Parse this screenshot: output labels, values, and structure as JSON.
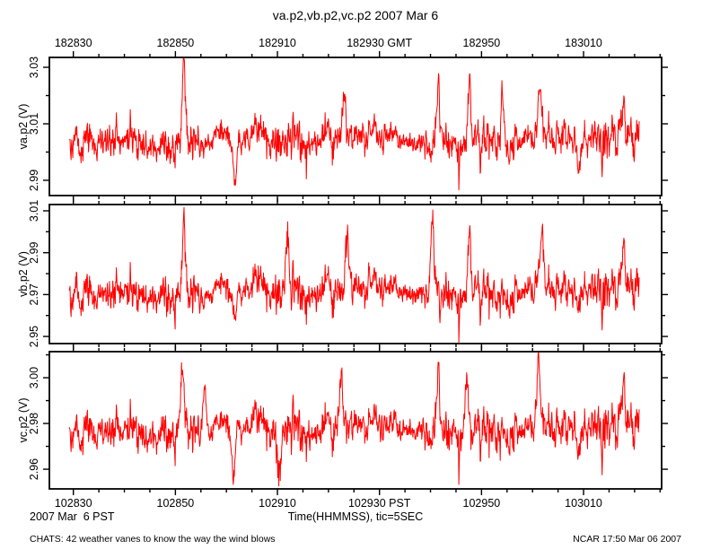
{
  "footer": {
    "left": "CHATS: 42 weather vanes to know the way the wind blows",
    "right": "NCAR 17:50 Mar 06 2007"
  },
  "chart_data": {
    "type": "line",
    "title": "va.p2,vb.p2,vc.p2 2007 Mar 6",
    "xlabel": "Time(HHMMSS), tic=5SEC",
    "date_label": "2007 Mar  6 PST",
    "line_color": "#ff0000",
    "grid": "off",
    "x_range_s": 120,
    "x_minor_step_s": 5,
    "data_start_s": 3.9,
    "data_end_s": 115.6,
    "seed": 20070306,
    "top_axis": {
      "timezone": "GMT",
      "ticks": [
        {
          "s": 4.7,
          "label": "182830"
        },
        {
          "s": 24.7,
          "label": "182850"
        },
        {
          "s": 44.7,
          "label": "182910"
        },
        {
          "s": 64.7,
          "label": "182930 GMT"
        },
        {
          "s": 84.7,
          "label": "182950"
        },
        {
          "s": 104.7,
          "label": "183010"
        }
      ]
    },
    "bottom_axis": {
      "timezone": "PST",
      "ticks": [
        {
          "s": 4.7,
          "label": "102830"
        },
        {
          "s": 24.7,
          "label": "102850"
        },
        {
          "s": 44.7,
          "label": "102910"
        },
        {
          "s": 64.7,
          "label": "102930 PST"
        },
        {
          "s": 84.7,
          "label": "102950"
        },
        {
          "s": 104.7,
          "label": "103010"
        }
      ]
    },
    "panels": [
      {
        "name": "va.p2",
        "ylabel": "va.p2 (V)",
        "ylim": [
          2.9846,
          3.0335
        ],
        "yticks_major": [
          2.99,
          3.01,
          3.03
        ],
        "yticks_minor": [
          3.0,
          3.02
        ],
        "mean": 3.004,
        "noise_sd": 0.0032,
        "spikes": [
          {
            "t": 26.3,
            "v": 3.0322
          },
          {
            "t": 36.4,
            "v": 2.9868
          },
          {
            "t": 57.7,
            "v": 3.0205
          },
          {
            "t": 76.3,
            "v": 3.0225
          },
          {
            "t": 82.3,
            "v": 3.0262
          },
          {
            "t": 88.8,
            "v": 3.0195
          },
          {
            "t": 96.2,
            "v": 3.0215
          },
          {
            "t": 103.8,
            "v": 2.9892
          },
          {
            "t": 112.6,
            "v": 3.0192
          }
        ]
      },
      {
        "name": "vb.p2",
        "ylabel": "vb.p2 (V)",
        "ylim": [
          2.9466,
          3.013
        ],
        "yticks_major": [
          2.95,
          2.97,
          2.99,
          3.01
        ],
        "yticks_minor": [
          2.96,
          2.98,
          3.0
        ],
        "mean": 2.971,
        "noise_sd": 0.0044,
        "spikes": [
          {
            "t": 26.3,
            "v": 3.004
          },
          {
            "t": 36.4,
            "v": 2.9558
          },
          {
            "t": 46.6,
            "v": 2.999
          },
          {
            "t": 58.4,
            "v": 2.9978
          },
          {
            "t": 75.0,
            "v": 3.0092
          },
          {
            "t": 82.3,
            "v": 3.0
          },
          {
            "t": 96.5,
            "v": 2.9992
          },
          {
            "t": 103.8,
            "v": 2.9578
          },
          {
            "t": 112.6,
            "v": 2.9968
          }
        ]
      },
      {
        "name": "vc.p2",
        "ylabel": "vc.p2 (V)",
        "ylim": [
          2.9514,
          3.0114
        ],
        "yticks_major": [
          2.96,
          2.98,
          3.0
        ],
        "yticks_minor": [
          2.97,
          2.99,
          3.01
        ],
        "mean": 2.977,
        "noise_sd": 0.0042,
        "spikes": [
          {
            "t": 26.0,
            "v": 3.0075
          },
          {
            "t": 30.4,
            "v": 3.0
          },
          {
            "t": 36.1,
            "v": 2.9545
          },
          {
            "t": 45.0,
            "v": 2.956
          },
          {
            "t": 57.2,
            "v": 3.001
          },
          {
            "t": 76.3,
            "v": 3.003
          },
          {
            "t": 81.8,
            "v": 3.004
          },
          {
            "t": 95.9,
            "v": 3.002
          },
          {
            "t": 103.8,
            "v": 2.9605
          },
          {
            "t": 112.6,
            "v": 3.001
          }
        ]
      }
    ]
  }
}
